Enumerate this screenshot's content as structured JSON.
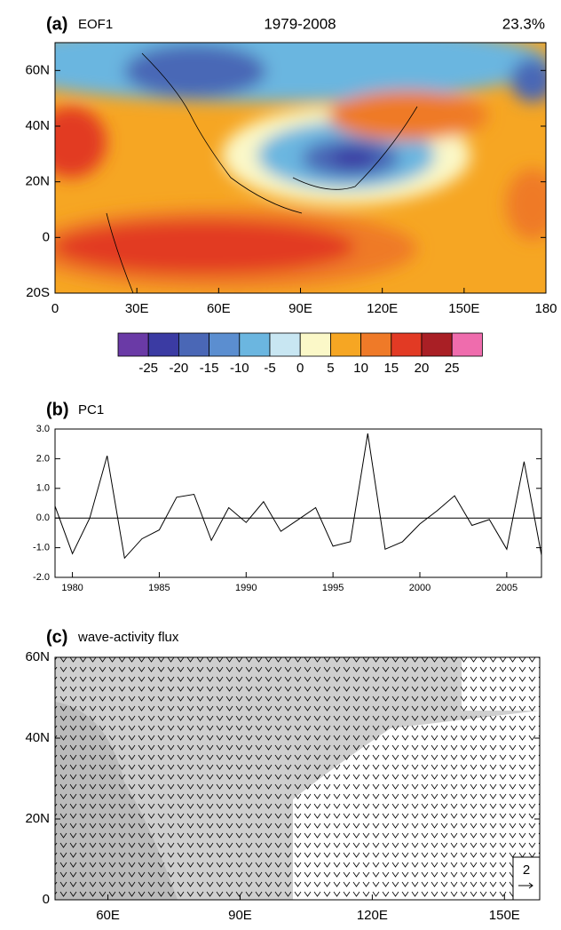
{
  "chart_data": [
    {
      "type": "contour_map",
      "panel_label": "(a)",
      "title": "EOF1",
      "period": "1979-2008",
      "variance": "23.3%",
      "xlim": [
        0,
        180
      ],
      "ylim": [
        -20,
        70
      ],
      "xticks": [
        0,
        {
          "value": 30,
          "label": "30E"
        },
        {
          "value": 60,
          "label": "60E"
        },
        {
          "value": 90,
          "label": "90E"
        },
        {
          "value": 120,
          "label": "120E"
        },
        {
          "value": 150,
          "label": "150E"
        },
        180
      ],
      "yticks": [
        {
          "value": -20,
          "label": "20S"
        },
        0,
        {
          "value": 20,
          "label": "20N"
        },
        {
          "value": 40,
          "label": "40N"
        },
        {
          "value": 60,
          "label": "60N"
        }
      ],
      "levels": [
        -25,
        -20,
        -15,
        -10,
        -5,
        0,
        5,
        10,
        15,
        20,
        25
      ],
      "colors": [
        "#6a3aa6",
        "#3b3ba3",
        "#4a67b6",
        "#5b8ed0",
        "#6bb6e0",
        "#c8e6f2",
        "#fbf8c8",
        "#f6a623",
        "#ef7a28",
        "#e23a24",
        "#a91f25",
        "#ef6cad"
      ]
    },
    {
      "type": "line",
      "panel_label": "(b)",
      "title": "PC1",
      "color": "#000000",
      "x": [
        1979,
        1980,
        1981,
        1982,
        1983,
        1984,
        1985,
        1986,
        1987,
        1988,
        1989,
        1990,
        1991,
        1992,
        1993,
        1994,
        1995,
        1996,
        1997,
        1998,
        1999,
        2000,
        2001,
        2002,
        2003,
        2004,
        2005,
        2006,
        2007
      ],
      "values": [
        0.4,
        -1.2,
        0.0,
        2.1,
        -1.35,
        -0.7,
        -0.4,
        0.7,
        0.8,
        -0.75,
        0.35,
        -0.15,
        0.55,
        -0.45,
        -0.05,
        0.35,
        -0.95,
        -0.8,
        2.85,
        -1.05,
        -0.8,
        -0.2,
        0.25,
        0.75,
        -0.25,
        -0.05,
        -1.05,
        1.9,
        -1.25
      ],
      "xlim": [
        1979,
        2007
      ],
      "xticks": [
        1980,
        1985,
        1990,
        1995,
        2000,
        2005
      ],
      "ylim": [
        -2,
        3
      ],
      "yticks": [
        {
          "value": -2,
          "label": "-2.0"
        },
        {
          "value": -1,
          "label": "-1.0"
        },
        {
          "value": 0,
          "label": "0.0"
        },
        {
          "value": 1,
          "label": "1.0"
        },
        {
          "value": 2,
          "label": "2.0"
        },
        {
          "value": 3,
          "label": "3.0"
        }
      ]
    },
    {
      "type": "vector_map",
      "panel_label": "(c)",
      "title": "wave-activity flux",
      "reference_vector": "2",
      "xlim": [
        48,
        158
      ],
      "ylim": [
        0,
        60
      ],
      "xticks": [
        {
          "value": 60,
          "label": "60E"
        },
        {
          "value": 90,
          "label": "90E"
        },
        {
          "value": 120,
          "label": "120E"
        },
        {
          "value": 150,
          "label": "150E"
        }
      ],
      "yticks": [
        0,
        {
          "value": 20,
          "label": "20N"
        },
        {
          "value": 40,
          "label": "40N"
        },
        {
          "value": 60,
          "label": "60N"
        }
      ]
    }
  ]
}
